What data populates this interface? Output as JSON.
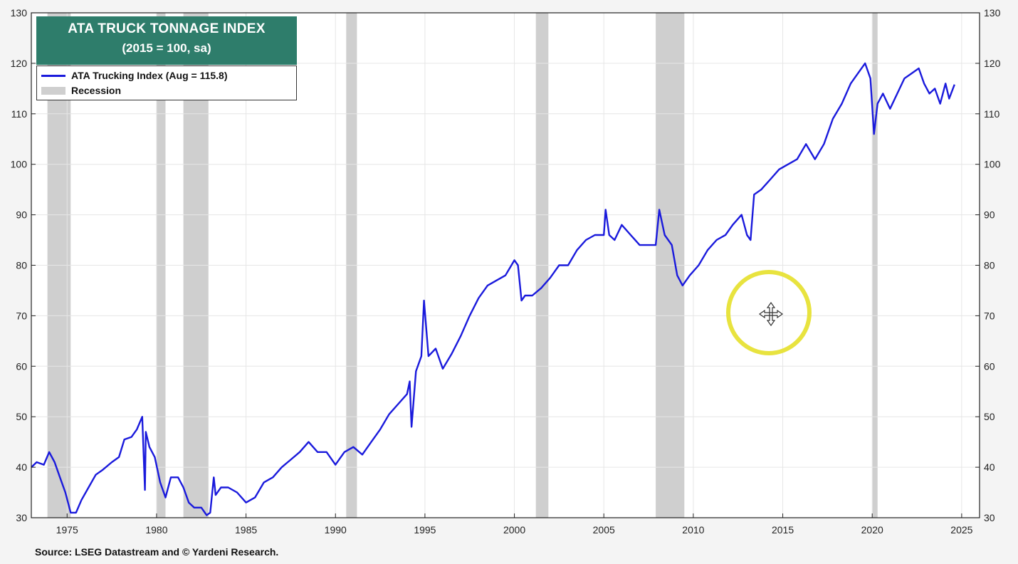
{
  "title": {
    "line1": "ATA TRUCK TONNAGE INDEX",
    "line2": "(2015 = 100, sa)"
  },
  "legend": {
    "series_label": "ATA Trucking Index (Aug = 115.8)",
    "recession_label": "Recession"
  },
  "source": "Source: LSEG Datastream and © Yardeni Research.",
  "colors": {
    "series": "#1a1adc",
    "recession": "#cfcfcf",
    "title_bg": "#2e7d6b"
  },
  "icons": [
    "move-cursor-icon"
  ],
  "chart_data": {
    "type": "line",
    "title": "ATA TRUCK TONNAGE INDEX",
    "subtitle": "(2015 = 100, sa)",
    "xlim": [
      1973,
      2026
    ],
    "ylim": [
      30,
      130
    ],
    "x_ticks": [
      1975,
      1980,
      1985,
      1990,
      1995,
      2000,
      2005,
      2010,
      2015,
      2020,
      2025
    ],
    "y_ticks": [
      30,
      40,
      50,
      60,
      70,
      80,
      90,
      100,
      110,
      120,
      130
    ],
    "grid": true,
    "legend_position": "top-left",
    "recessions": [
      [
        1973.9,
        1975.2
      ],
      [
        1980.0,
        1980.5
      ],
      [
        1981.5,
        1982.9
      ],
      [
        1990.6,
        1991.2
      ],
      [
        2001.2,
        2001.9
      ],
      [
        2007.9,
        2009.5
      ],
      [
        2020.0,
        2020.3
      ]
    ],
    "series": [
      {
        "name": "ATA Trucking Index (Aug = 115.8)",
        "x": [
          1973.0,
          1973.3,
          1973.7,
          1974.0,
          1974.3,
          1974.6,
          1974.9,
          1975.2,
          1975.5,
          1975.8,
          1976.2,
          1976.6,
          1977.0,
          1977.5,
          1977.9,
          1978.2,
          1978.6,
          1978.9,
          1979.2,
          1979.35,
          1979.4,
          1979.6,
          1979.9,
          1980.2,
          1980.5,
          1980.8,
          1981.2,
          1981.5,
          1981.8,
          1982.1,
          1982.5,
          1982.8,
          1983.0,
          1983.2,
          1983.3,
          1983.6,
          1984.0,
          1984.5,
          1985.0,
          1985.5,
          1986.0,
          1986.5,
          1987.0,
          1987.5,
          1988.0,
          1988.5,
          1989.0,
          1989.5,
          1990.0,
          1990.5,
          1991.0,
          1991.5,
          1992.0,
          1992.5,
          1993.0,
          1993.5,
          1994.0,
          1994.15,
          1994.25,
          1994.5,
          1994.8,
          1994.95,
          1995.2,
          1995.6,
          1996.0,
          1996.5,
          1997.0,
          1997.5,
          1998.0,
          1998.5,
          1999.0,
          1999.5,
          2000.0,
          2000.2,
          2000.4,
          2000.6,
          2001.0,
          2001.5,
          2002.0,
          2002.5,
          2003.0,
          2003.5,
          2004.0,
          2004.5,
          2005.0,
          2005.1,
          2005.3,
          2005.6,
          2006.0,
          2006.5,
          2007.0,
          2007.5,
          2007.9,
          2008.1,
          2008.4,
          2008.8,
          2009.1,
          2009.4,
          2009.8,
          2010.3,
          2010.8,
          2011.3,
          2011.8,
          2012.2,
          2012.7,
          2013.0,
          2013.2,
          2013.4,
          2013.8,
          2014.3,
          2014.8,
          2015.3,
          2015.8,
          2016.3,
          2016.8,
          2017.3,
          2017.8,
          2018.3,
          2018.8,
          2019.2,
          2019.6,
          2019.9,
          2020.1,
          2020.3,
          2020.6,
          2021.0,
          2021.4,
          2021.8,
          2022.2,
          2022.6,
          2022.9,
          2023.2,
          2023.5,
          2023.8,
          2024.1,
          2024.3,
          2024.6
        ],
        "values": [
          40,
          41,
          40.5,
          43,
          41,
          38,
          35,
          31,
          31,
          33.5,
          36,
          38.5,
          39.5,
          41,
          42,
          45.5,
          46,
          47.5,
          50,
          35.5,
          47,
          44,
          42,
          37,
          34,
          38,
          38,
          36,
          33,
          32,
          32,
          30.5,
          31,
          38,
          34.5,
          36,
          36,
          35,
          33,
          34,
          37,
          38,
          40,
          41.5,
          43,
          45,
          43,
          43,
          40.5,
          43,
          44,
          42.5,
          45,
          47.5,
          50.5,
          52.5,
          54.5,
          57,
          48,
          59,
          62,
          73,
          62,
          63.5,
          59.5,
          62.5,
          66,
          70,
          73.5,
          76,
          77,
          78,
          81,
          80,
          73,
          74,
          74,
          75.5,
          77.5,
          80,
          80,
          83,
          85,
          86,
          86,
          91,
          86,
          85,
          88,
          86,
          84,
          84,
          84,
          91,
          86,
          84,
          78,
          76,
          78,
          80,
          83,
          85,
          86,
          88,
          90,
          86,
          85,
          94,
          95,
          97,
          99,
          100,
          101,
          104,
          101,
          104,
          109,
          112,
          116,
          118,
          120,
          117,
          106,
          112,
          114,
          111,
          114,
          117,
          118,
          119,
          116,
          114,
          115,
          112,
          116,
          113,
          115.8
        ]
      }
    ]
  }
}
